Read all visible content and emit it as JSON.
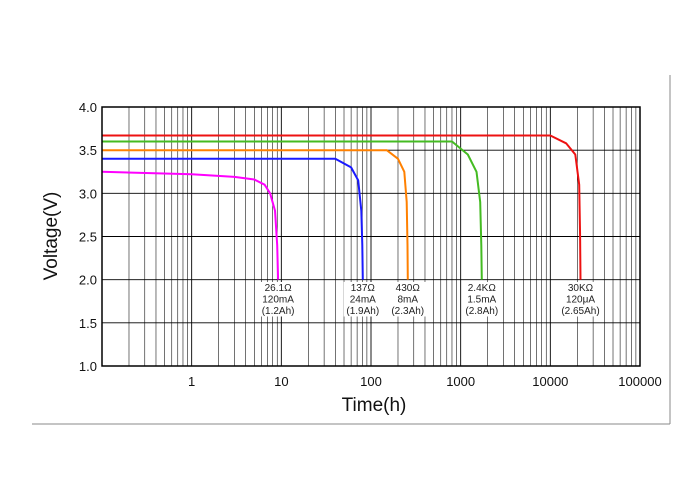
{
  "chart_data": {
    "type": "line",
    "xlabel": "Time(h)",
    "ylabel": "Voltage(V)",
    "xscale": "log",
    "xlim": [
      0.1,
      100000
    ],
    "ylim": [
      1.0,
      4.0
    ],
    "grid": true,
    "x_tick_labels": [
      "1",
      "10",
      "100",
      "1000",
      "10000",
      "100000"
    ],
    "y_tick_labels": [
      "4.0",
      "3.5",
      "3.0",
      "2.5",
      "2.0",
      "1.5",
      "1.0"
    ],
    "series": [
      {
        "color": "#ff00ff",
        "points": [
          [
            0.1,
            3.25
          ],
          [
            1,
            3.22
          ],
          [
            3,
            3.19
          ],
          [
            5,
            3.16
          ],
          [
            6.5,
            3.1
          ],
          [
            7.5,
            3.0
          ],
          [
            8.5,
            2.8
          ],
          [
            9,
            2.4
          ],
          [
            9.2,
            2.0
          ]
        ],
        "annotation": [
          "26.1Ω",
          "120mA",
          "(1.2Ah)"
        ]
      },
      {
        "color": "#1a1aff",
        "points": [
          [
            0.1,
            3.4
          ],
          [
            40,
            3.4
          ],
          [
            60,
            3.3
          ],
          [
            72,
            3.15
          ],
          [
            78,
            2.8
          ],
          [
            80,
            2.4
          ],
          [
            81,
            2.0
          ]
        ],
        "annotation": [
          "137Ω",
          "24mA",
          "(1.9Ah)"
        ]
      },
      {
        "color": "#ff8000",
        "points": [
          [
            0.1,
            3.5
          ],
          [
            150,
            3.5
          ],
          [
            200,
            3.4
          ],
          [
            235,
            3.25
          ],
          [
            250,
            2.9
          ],
          [
            255,
            2.4
          ],
          [
            257,
            2.0
          ]
        ],
        "annotation": [
          "430Ω",
          "8mA",
          "(2.3Ah)"
        ]
      },
      {
        "color": "#44bb22",
        "points": [
          [
            0.1,
            3.6
          ],
          [
            800,
            3.6
          ],
          [
            1200,
            3.45
          ],
          [
            1500,
            3.25
          ],
          [
            1650,
            2.9
          ],
          [
            1700,
            2.4
          ],
          [
            1720,
            2.0
          ]
        ],
        "annotation": [
          "2.4KΩ",
          "1.5mA",
          "(2.8Ah)"
        ]
      },
      {
        "color": "#ee1111",
        "points": [
          [
            0.1,
            3.67
          ],
          [
            10000,
            3.67
          ],
          [
            15000,
            3.58
          ],
          [
            19000,
            3.45
          ],
          [
            21000,
            3.1
          ],
          [
            21500,
            2.5
          ],
          [
            21700,
            2.0
          ]
        ],
        "annotation": [
          "30KΩ",
          "120μA",
          "(2.65Ah)"
        ]
      }
    ]
  }
}
